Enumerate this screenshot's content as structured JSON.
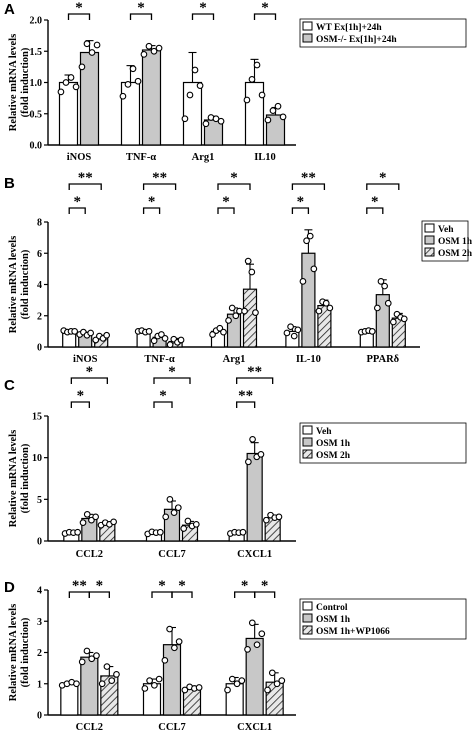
{
  "chart_data": [
    {
      "panel": "A",
      "type": "bar",
      "ylabel": "Relative mRNA levels",
      "ylabel2": "(fold induction)",
      "ylim": [
        0,
        2.0
      ],
      "yticks": [
        "0.0",
        "0.5",
        "1.0",
        "1.5",
        "2.0"
      ],
      "categories": [
        "iNOS",
        "TNF-α",
        "Arg1",
        "IL10"
      ],
      "legend": "top-right",
      "series": [
        {
          "name": "WT Ex[1h]+24h",
          "fill": "#ffffff",
          "hatch": false,
          "values": [
            1.0,
            1.0,
            1.0,
            1.0
          ],
          "errors": [
            0.12,
            0.27,
            0.48,
            0.37
          ],
          "points": [
            [
              0.85,
              1.0,
              1.08,
              0.93
            ],
            [
              0.78,
              0.97,
              1.22,
              1.02
            ],
            [
              0.42,
              0.8,
              1.2,
              0.95
            ],
            [
              0.72,
              1.05,
              1.28,
              0.8
            ]
          ]
        },
        {
          "name": "OSM-/- Ex[1h]+24h",
          "fill": "#c8c8c8",
          "hatch": false,
          "values": [
            1.48,
            1.52,
            0.4,
            0.48
          ],
          "errors": [
            0.19,
            0.07,
            0.06,
            0.12
          ],
          "points": [
            [
              1.25,
              1.62,
              1.48,
              1.6
            ],
            [
              1.45,
              1.58,
              1.5,
              1.55
            ],
            [
              0.34,
              0.44,
              0.42,
              0.38
            ],
            [
              0.4,
              0.55,
              0.62,
              0.45
            ]
          ]
        }
      ],
      "significance": [
        {
          "category": 0,
          "from": 0,
          "to": 1,
          "label": "*",
          "level": 0
        },
        {
          "category": 1,
          "from": 0,
          "to": 1,
          "label": "*",
          "level": 0
        },
        {
          "category": 2,
          "from": 0,
          "to": 1,
          "label": "*",
          "level": 0
        },
        {
          "category": 3,
          "from": 0,
          "to": 1,
          "label": "*",
          "level": 0
        }
      ]
    },
    {
      "panel": "B",
      "type": "bar",
      "ylabel": "Relative mRNA levels",
      "ylabel2": "(fold induction)",
      "ylim": [
        0,
        8
      ],
      "yticks": [
        "0",
        "2",
        "4",
        "6",
        "8"
      ],
      "categories": [
        "iNOS",
        "TNF-α",
        "Arg1",
        "IL-10",
        "PPARδ"
      ],
      "legend": "top-right",
      "series": [
        {
          "name": "Veh",
          "fill": "#ffffff",
          "hatch": false,
          "values": [
            1.0,
            1.0,
            1.0,
            1.0,
            1.0
          ],
          "errors": [
            0.08,
            0.08,
            0.15,
            0.3,
            0.05
          ],
          "points": [
            [
              1.05,
              0.95,
              1.0,
              1.0
            ],
            [
              1.0,
              1.05,
              0.95,
              1.0
            ],
            [
              0.8,
              1.05,
              1.2,
              0.95
            ],
            [
              0.9,
              1.3,
              0.7,
              1.1
            ],
            [
              0.95,
              1.0,
              1.05,
              1.0
            ]
          ]
        },
        {
          "name": "OSM 1h",
          "fill": "#c8c8c8",
          "hatch": false,
          "values": [
            0.85,
            0.62,
            2.1,
            6.0,
            3.35
          ],
          "errors": [
            0.1,
            0.2,
            0.4,
            1.5,
            0.95
          ],
          "points": [
            [
              0.8,
              0.95,
              0.75,
              0.9
            ],
            [
              0.4,
              0.7,
              0.8,
              0.55
            ],
            [
              1.7,
              2.5,
              2.0,
              2.3
            ],
            [
              4.2,
              6.8,
              7.1,
              5.0
            ],
            [
              2.5,
              4.2,
              3.9,
              2.8
            ]
          ]
        },
        {
          "name": "OSM 2h",
          "fill": "#e8e8e8",
          "hatch": true,
          "values": [
            0.6,
            0.35,
            3.7,
            2.65,
            1.85
          ],
          "errors": [
            0.15,
            0.2,
            1.6,
            0.35,
            0.3
          ],
          "points": [
            [
              0.45,
              0.7,
              0.55,
              0.75
            ],
            [
              0.15,
              0.5,
              0.3,
              0.45
            ],
            [
              2.3,
              5.5,
              4.8,
              2.2
            ],
            [
              2.3,
              2.9,
              2.8,
              2.5
            ],
            [
              1.6,
              2.1,
              1.9,
              1.8
            ]
          ]
        }
      ],
      "significance": [
        {
          "category": 0,
          "from": 0,
          "to": 1,
          "label": "*",
          "level": 0
        },
        {
          "category": 0,
          "from": 0,
          "to": 2,
          "label": "**",
          "level": 1
        },
        {
          "category": 1,
          "from": 0,
          "to": 1,
          "label": "*",
          "level": 0
        },
        {
          "category": 1,
          "from": 0,
          "to": 2,
          "label": "**",
          "level": 1
        },
        {
          "category": 2,
          "from": 0,
          "to": 1,
          "label": "*",
          "level": 0
        },
        {
          "category": 2,
          "from": 0,
          "to": 2,
          "label": "*",
          "level": 1
        },
        {
          "category": 3,
          "from": 0,
          "to": 1,
          "label": "*",
          "level": 0
        },
        {
          "category": 3,
          "from": 0,
          "to": 2,
          "label": "**",
          "level": 1
        },
        {
          "category": 4,
          "from": 0,
          "to": 1,
          "label": "*",
          "level": 0
        },
        {
          "category": 4,
          "from": 0,
          "to": 2,
          "label": "*",
          "level": 1
        }
      ]
    },
    {
      "panel": "C",
      "type": "bar",
      "ylabel": "Relative mRNA levels",
      "ylabel2": "(fold induction)",
      "ylim": [
        0,
        15
      ],
      "yticks": [
        "0",
        "5",
        "10",
        "15"
      ],
      "categories": [
        "CCL2",
        "CCL7",
        "CXCL1"
      ],
      "legend": "top-right",
      "series": [
        {
          "name": "Veh",
          "fill": "#ffffff",
          "hatch": false,
          "values": [
            1.0,
            1.0,
            1.0
          ],
          "errors": [
            0.1,
            0.15,
            0.1
          ],
          "points": [
            [
              0.9,
              1.05,
              1.0,
              1.05
            ],
            [
              0.85,
              1.1,
              1.0,
              1.05
            ],
            [
              0.9,
              1.05,
              1.0,
              1.05
            ]
          ]
        },
        {
          "name": "OSM 1h",
          "fill": "#c8c8c8",
          "hatch": false,
          "values": [
            2.7,
            3.8,
            10.5
          ],
          "errors": [
            0.5,
            1.0,
            1.3
          ],
          "points": [
            [
              2.2,
              3.2,
              2.5,
              2.9
            ],
            [
              2.9,
              5.0,
              3.4,
              4.0
            ],
            [
              9.5,
              12.2,
              10.1,
              10.4
            ]
          ]
        },
        {
          "name": "OSM 2h",
          "fill": "#e8e8e8",
          "hatch": true,
          "values": [
            2.1,
            1.9,
            2.8
          ],
          "errors": [
            0.2,
            0.45,
            0.3
          ],
          "points": [
            [
              1.9,
              2.2,
              2.0,
              2.3
            ],
            [
              1.5,
              2.4,
              1.8,
              2.0
            ],
            [
              2.5,
              3.1,
              2.8,
              2.9
            ]
          ]
        }
      ],
      "significance": [
        {
          "category": 0,
          "from": 0,
          "to": 1,
          "label": "*",
          "level": 0
        },
        {
          "category": 0,
          "from": 0,
          "to": 2,
          "label": "*",
          "level": 1
        },
        {
          "category": 1,
          "from": 0,
          "to": 1,
          "label": "*",
          "level": 0
        },
        {
          "category": 1,
          "from": 0,
          "to": 2,
          "label": "*",
          "level": 1
        },
        {
          "category": 2,
          "from": 0,
          "to": 1,
          "label": "**",
          "level": 0
        },
        {
          "category": 2,
          "from": 0,
          "to": 2,
          "label": "**",
          "level": 1
        }
      ]
    },
    {
      "panel": "D",
      "type": "bar",
      "ylabel": "Relative mRNA levels",
      "ylabel2": "(fold induction)",
      "ylim": [
        0,
        4
      ],
      "yticks": [
        "0",
        "1",
        "2",
        "3",
        "4"
      ],
      "categories": [
        "CCL2",
        "CCL7",
        "CXCL1"
      ],
      "legend": "top-right",
      "series": [
        {
          "name": "Control",
          "fill": "#ffffff",
          "hatch": false,
          "values": [
            1.0,
            1.0,
            1.0
          ],
          "errors": [
            0.05,
            0.15,
            0.2
          ],
          "points": [
            [
              0.95,
              1.0,
              1.05,
              1.0
            ],
            [
              0.85,
              1.1,
              0.95,
              1.15
            ],
            [
              0.8,
              1.15,
              1.0,
              1.1
            ]
          ]
        },
        {
          "name": "OSM 1h",
          "fill": "#c8c8c8",
          "hatch": false,
          "values": [
            1.85,
            2.25,
            2.45
          ],
          "errors": [
            0.15,
            0.55,
            0.45
          ],
          "points": [
            [
              1.7,
              2.05,
              1.8,
              1.9
            ],
            [
              1.75,
              2.75,
              2.15,
              2.35
            ],
            [
              2.1,
              2.95,
              2.25,
              2.6
            ]
          ]
        },
        {
          "name": "OSM 1h+WP1066",
          "fill": "#e8e8e8",
          "hatch": true,
          "values": [
            1.25,
            0.85,
            1.05
          ],
          "errors": [
            0.3,
            0.08,
            0.3
          ],
          "points": [
            [
              1.0,
              1.55,
              1.1,
              1.3
            ],
            [
              0.8,
              0.9,
              0.85,
              0.88
            ],
            [
              0.8,
              1.35,
              1.0,
              1.1
            ]
          ]
        }
      ],
      "significance": [
        {
          "category": 0,
          "from": 0,
          "to": 1,
          "label": "**",
          "level": 0
        },
        {
          "category": 0,
          "from": 1,
          "to": 2,
          "label": "*",
          "level": 0
        },
        {
          "category": 1,
          "from": 0,
          "to": 1,
          "label": "*",
          "level": 0
        },
        {
          "category": 1,
          "from": 1,
          "to": 2,
          "label": "*",
          "level": 0
        },
        {
          "category": 2,
          "from": 0,
          "to": 1,
          "label": "*",
          "level": 0
        },
        {
          "category": 2,
          "from": 1,
          "to": 2,
          "label": "*",
          "level": 0
        }
      ]
    }
  ]
}
